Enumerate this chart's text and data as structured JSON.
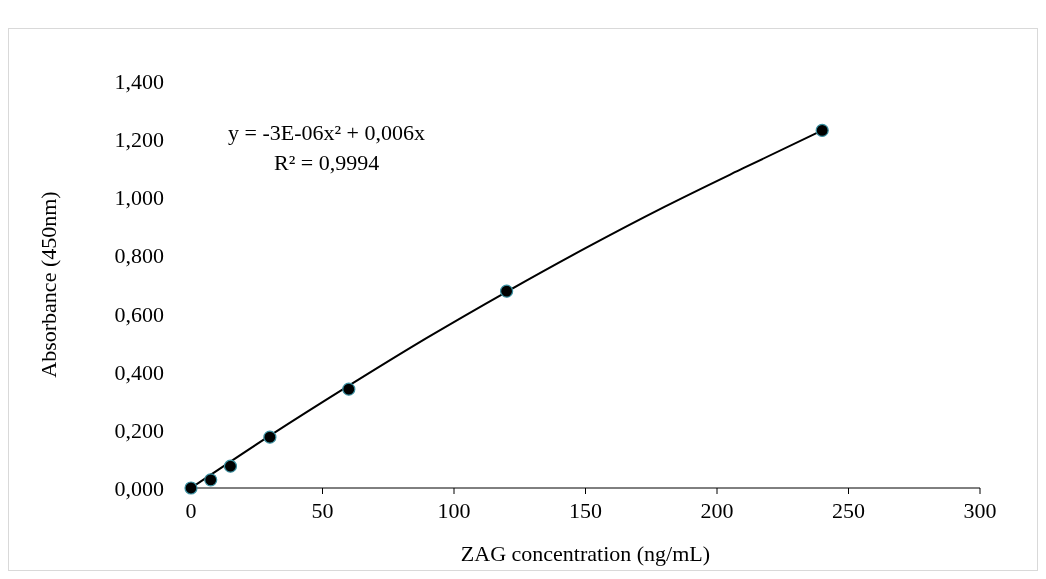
{
  "chart_data": {
    "type": "scatter",
    "xlabel": "ZAG concentration (ng/mL)",
    "ylabel": "Absorbance (450nm)",
    "annotations": [
      "y = -3E-06x² + 0,006x",
      "R² = 0,9994"
    ],
    "xlim": [
      0,
      300
    ],
    "xticks": [
      0,
      50,
      100,
      150,
      200,
      250,
      300
    ],
    "ylim": [
      0,
      1.4
    ],
    "yticks": [
      {
        "value": 0,
        "label": "0,000"
      },
      {
        "value": 0.2,
        "label": "0,200"
      },
      {
        "value": 0.4,
        "label": "0,400"
      },
      {
        "value": 0.6,
        "label": "0,600"
      },
      {
        "value": 0.8,
        "label": "0,800"
      },
      {
        "value": 1,
        "label": "1,000"
      },
      {
        "value": 1.2,
        "label": "1,200"
      },
      {
        "value": 1.4,
        "label": "1,400"
      }
    ],
    "grid": false,
    "marker": "circle",
    "series": [
      {
        "color": "#000000",
        "x": [
          0,
          7.5,
          15,
          30,
          60,
          120,
          240
        ],
        "values": [
          0,
          0.028,
          0.075,
          0.175,
          0.34,
          0.677,
          1.23
        ]
      },
      {
        "type": "line",
        "color": "#000000",
        "line_style": "solid",
        "marker": "none",
        "x": [
          0,
          30,
          60,
          90,
          120,
          150,
          180,
          210,
          240
        ],
        "values": [
          0,
          0.18,
          0.352,
          0.518,
          0.675,
          0.825,
          0.967,
          1.1,
          1.23
        ]
      }
    ]
  }
}
